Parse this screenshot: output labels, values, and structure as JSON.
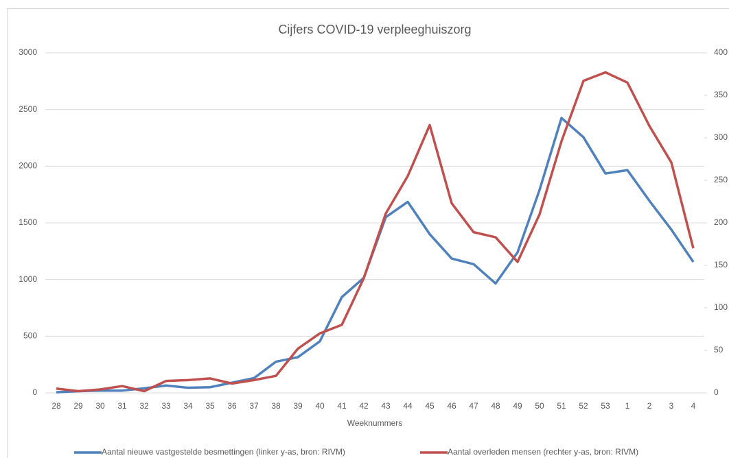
{
  "chart_data": {
    "type": "line",
    "title": "Cijfers COVID-19 verpleeghuiszorg",
    "x_label": "Weeknummers",
    "categories": [
      "28",
      "29",
      "30",
      "31",
      "32",
      "33",
      "34",
      "35",
      "36",
      "37",
      "38",
      "39",
      "40",
      "41",
      "42",
      "43",
      "44",
      "45",
      "46",
      "47",
      "48",
      "49",
      "50",
      "51",
      "52",
      "53",
      "1",
      "2",
      "3",
      "4"
    ],
    "series": [
      {
        "name": "Aantal nieuwe vastgestelde besmettingen  (linker y-as, bron: RIVM)",
        "color": "#4f81bd",
        "axis": "y",
        "values": [
          5,
          15,
          20,
          20,
          40,
          65,
          45,
          50,
          90,
          130,
          275,
          315,
          455,
          845,
          1015,
          1550,
          1685,
          1400,
          1185,
          1135,
          965,
          1240,
          1790,
          2425,
          2255,
          1935,
          1965,
          1695,
          1440,
          1155
        ]
      },
      {
        "name": "Aantal overleden mensen  (rechter y-as, bron: RIVM)",
        "color": "#c0504d",
        "axis": "y2",
        "values": [
          5,
          2,
          4,
          8,
          2,
          14,
          15,
          17,
          11,
          15,
          20,
          52,
          70,
          80,
          135,
          211,
          255,
          315,
          223,
          189,
          183,
          154,
          210,
          296,
          367,
          377,
          365,
          314,
          271,
          170
        ]
      }
    ],
    "ylim": [
      0,
      3000
    ],
    "yticks": [
      0,
      500,
      1000,
      1500,
      2000,
      2500,
      3000
    ],
    "y2lim": [
      0,
      400
    ],
    "y2ticks": [
      0,
      50,
      100,
      150,
      200,
      250,
      300,
      350,
      400
    ],
    "grid": true,
    "legend": "bottom"
  }
}
